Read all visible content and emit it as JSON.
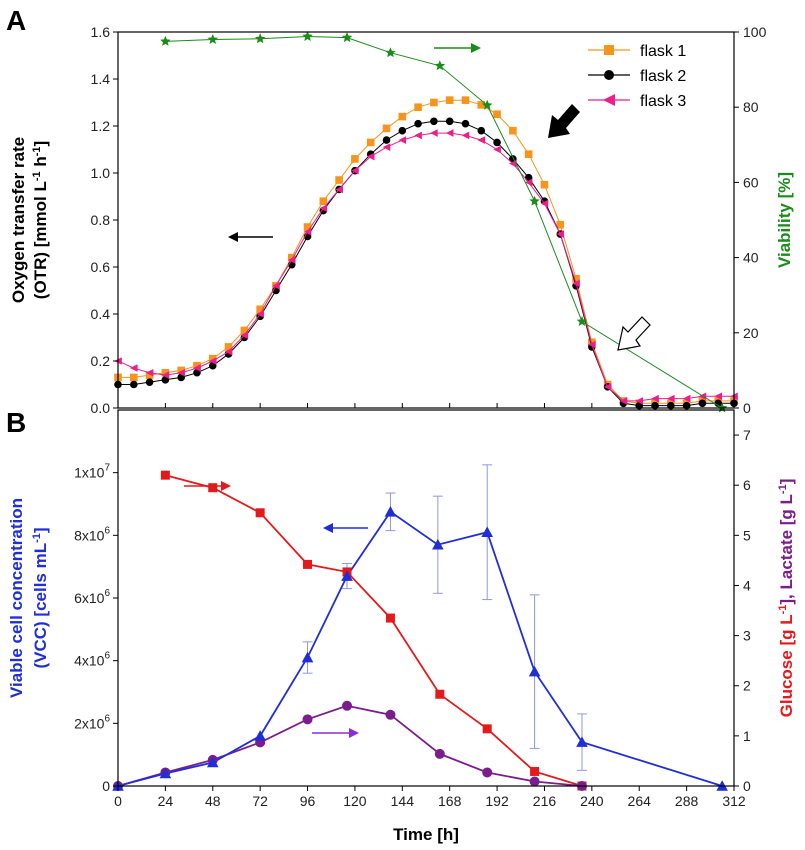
{
  "colors": {
    "flask1": "#f7941d",
    "flask2": "#000000",
    "flask3": "#ec1e8c",
    "viability": "#1a8c1a",
    "vcc": "#1f2ed6",
    "glucose": "#e31a1c",
    "lactate": "#7b1d8c"
  },
  "chart_data": [
    {
      "panel": "A",
      "type": "scatter",
      "xlabel": "Time [h]",
      "ylabel_line1": "Oxygen transfer rate",
      "ylabel_line2_a": "(OTR)",
      "ylabel_line2_b": "[mmol L",
      "ylabel_sup1": "-1",
      "ylabel_mid": " h",
      "ylabel_sup2": "-1",
      "ylabel_end": "]",
      "y2label_a": "Viability",
      "y2label_b": "[%]",
      "xlim": [
        0,
        312
      ],
      "ylim": [
        0,
        1.6
      ],
      "y2lim": [
        0,
        100
      ],
      "y_ticks": [
        "0.0",
        "0.2",
        "0.4",
        "0.6",
        "0.8",
        "1.0",
        "1.2",
        "1.4",
        "1.6"
      ],
      "y2_ticks": [
        "0",
        "20",
        "40",
        "60",
        "80",
        "100"
      ],
      "legend_position": "top-right",
      "series": [
        {
          "name": "flask 1",
          "marker": "square",
          "x": [
            0,
            8,
            16,
            24,
            32,
            40,
            48,
            56,
            64,
            72,
            80,
            88,
            96,
            104,
            112,
            120,
            128,
            136,
            144,
            152,
            160,
            168,
            176,
            184,
            192,
            200,
            208,
            216,
            224,
            232,
            240,
            248,
            256,
            264,
            272,
            280,
            288,
            296,
            304,
            312
          ],
          "y": [
            0.13,
            0.13,
            0.14,
            0.15,
            0.16,
            0.18,
            0.21,
            0.26,
            0.33,
            0.42,
            0.52,
            0.64,
            0.77,
            0.88,
            0.97,
            1.06,
            1.13,
            1.19,
            1.24,
            1.28,
            1.3,
            1.31,
            1.31,
            1.29,
            1.25,
            1.18,
            1.08,
            0.95,
            0.78,
            0.55,
            0.28,
            0.1,
            0.03,
            0.02,
            0.02,
            0.02,
            0.02,
            0.03,
            0.03,
            0.03
          ]
        },
        {
          "name": "flask 2",
          "marker": "circle",
          "x": [
            0,
            8,
            16,
            24,
            32,
            40,
            48,
            56,
            64,
            72,
            80,
            88,
            96,
            104,
            112,
            120,
            128,
            136,
            144,
            152,
            160,
            168,
            176,
            184,
            192,
            200,
            208,
            216,
            224,
            232,
            240,
            248,
            256,
            264,
            272,
            280,
            288,
            296,
            304,
            312
          ],
          "y": [
            0.1,
            0.1,
            0.11,
            0.12,
            0.13,
            0.15,
            0.18,
            0.23,
            0.3,
            0.39,
            0.5,
            0.61,
            0.73,
            0.84,
            0.93,
            1.01,
            1.08,
            1.14,
            1.18,
            1.21,
            1.22,
            1.22,
            1.21,
            1.18,
            1.13,
            1.06,
            0.98,
            0.88,
            0.74,
            0.52,
            0.26,
            0.09,
            0.02,
            0.01,
            0.01,
            0.01,
            0.01,
            0.02,
            0.02,
            0.02
          ]
        },
        {
          "name": "flask 3",
          "marker": "triangle-left",
          "x": [
            0,
            8,
            16,
            24,
            32,
            40,
            48,
            56,
            64,
            72,
            80,
            88,
            96,
            104,
            112,
            120,
            128,
            136,
            144,
            152,
            160,
            168,
            176,
            184,
            192,
            200,
            208,
            216,
            224,
            232,
            240,
            248,
            256,
            264,
            272,
            280,
            288,
            296,
            304,
            312
          ],
          "y": [
            0.2,
            0.17,
            0.15,
            0.14,
            0.15,
            0.17,
            0.2,
            0.24,
            0.31,
            0.4,
            0.52,
            0.63,
            0.75,
            0.85,
            0.93,
            1.01,
            1.07,
            1.11,
            1.14,
            1.16,
            1.17,
            1.17,
            1.16,
            1.14,
            1.1,
            1.04,
            0.96,
            0.87,
            0.74,
            0.53,
            0.27,
            0.09,
            0.03,
            0.03,
            0.04,
            0.04,
            0.04,
            0.05,
            0.05,
            0.05
          ]
        },
        {
          "name": "viability",
          "marker": "star",
          "axis": "y2",
          "x": [
            24,
            48,
            72,
            96,
            116,
            138,
            163,
            187,
            211,
            235,
            306
          ],
          "y": [
            97.5,
            98,
            98.2,
            98.8,
            98.5,
            94.5,
            91,
            80.5,
            55,
            23,
            0
          ]
        }
      ]
    },
    {
      "panel": "B",
      "type": "line",
      "xlabel": "Time [h]",
      "ylabel_a": "Viable cell concentration",
      "ylabel_b": "(VCC)",
      "ylabel_c": "[cells mL",
      "ylabel_sup": "-1",
      "ylabel_end": "]",
      "y2label_glucose": "Glucose",
      "y2label_glu_unit": "[g L",
      "y2label_sep": "], ",
      "y2label_lactate": "Lactate",
      "y2label_lac_unit": "[g L",
      "y2label_sup": "-1",
      "y2label_end": "]",
      "xlim": [
        0,
        312
      ],
      "ylim": [
        0,
        12000000.0
      ],
      "y2lim": [
        0,
        7.5
      ],
      "x_ticks": [
        "0",
        "24",
        "48",
        "72",
        "96",
        "120",
        "144",
        "168",
        "192",
        "216",
        "240",
        "264",
        "288",
        "312"
      ],
      "y_ticks": [
        {
          "mant": "0",
          "exp": ""
        },
        {
          "mant": "2x10",
          "exp": "6"
        },
        {
          "mant": "4x10",
          "exp": "6"
        },
        {
          "mant": "6x10",
          "exp": "6"
        },
        {
          "mant": "8x10",
          "exp": "6"
        },
        {
          "mant": "1x10",
          "exp": "7"
        }
      ],
      "y2_ticks": [
        "0",
        "1",
        "2",
        "3",
        "4",
        "5",
        "6",
        "7"
      ],
      "series": [
        {
          "name": "VCC",
          "marker": "triangle-up",
          "axis": "y",
          "x": [
            0,
            24,
            48,
            72,
            96,
            116,
            138,
            162,
            187,
            211,
            235,
            306
          ],
          "y": [
            0,
            400000,
            750000,
            1600000,
            4100000,
            6700000,
            8750000,
            7700000,
            8100000,
            3650000,
            1400000,
            0
          ],
          "err": [
            0,
            0,
            0,
            0,
            500000,
            400000,
            600000,
            1550000,
            2150000,
            2450000,
            900000,
            0
          ]
        },
        {
          "name": "Glucose",
          "marker": "square",
          "axis": "y2",
          "x": [
            24,
            48,
            72,
            96,
            116,
            138,
            163,
            187,
            211,
            235
          ],
          "y": [
            6.2,
            5.95,
            5.45,
            4.42,
            4.27,
            3.35,
            1.83,
            1.14,
            0.29,
            0
          ]
        },
        {
          "name": "Lactate",
          "marker": "circle",
          "axis": "y2",
          "x": [
            0,
            24,
            48,
            72,
            96,
            116,
            138,
            163,
            187,
            211,
            235
          ],
          "y": [
            0,
            0.27,
            0.52,
            0.87,
            1.33,
            1.6,
            1.42,
            0.64,
            0.27,
            0.09,
            0
          ]
        }
      ]
    }
  ]
}
